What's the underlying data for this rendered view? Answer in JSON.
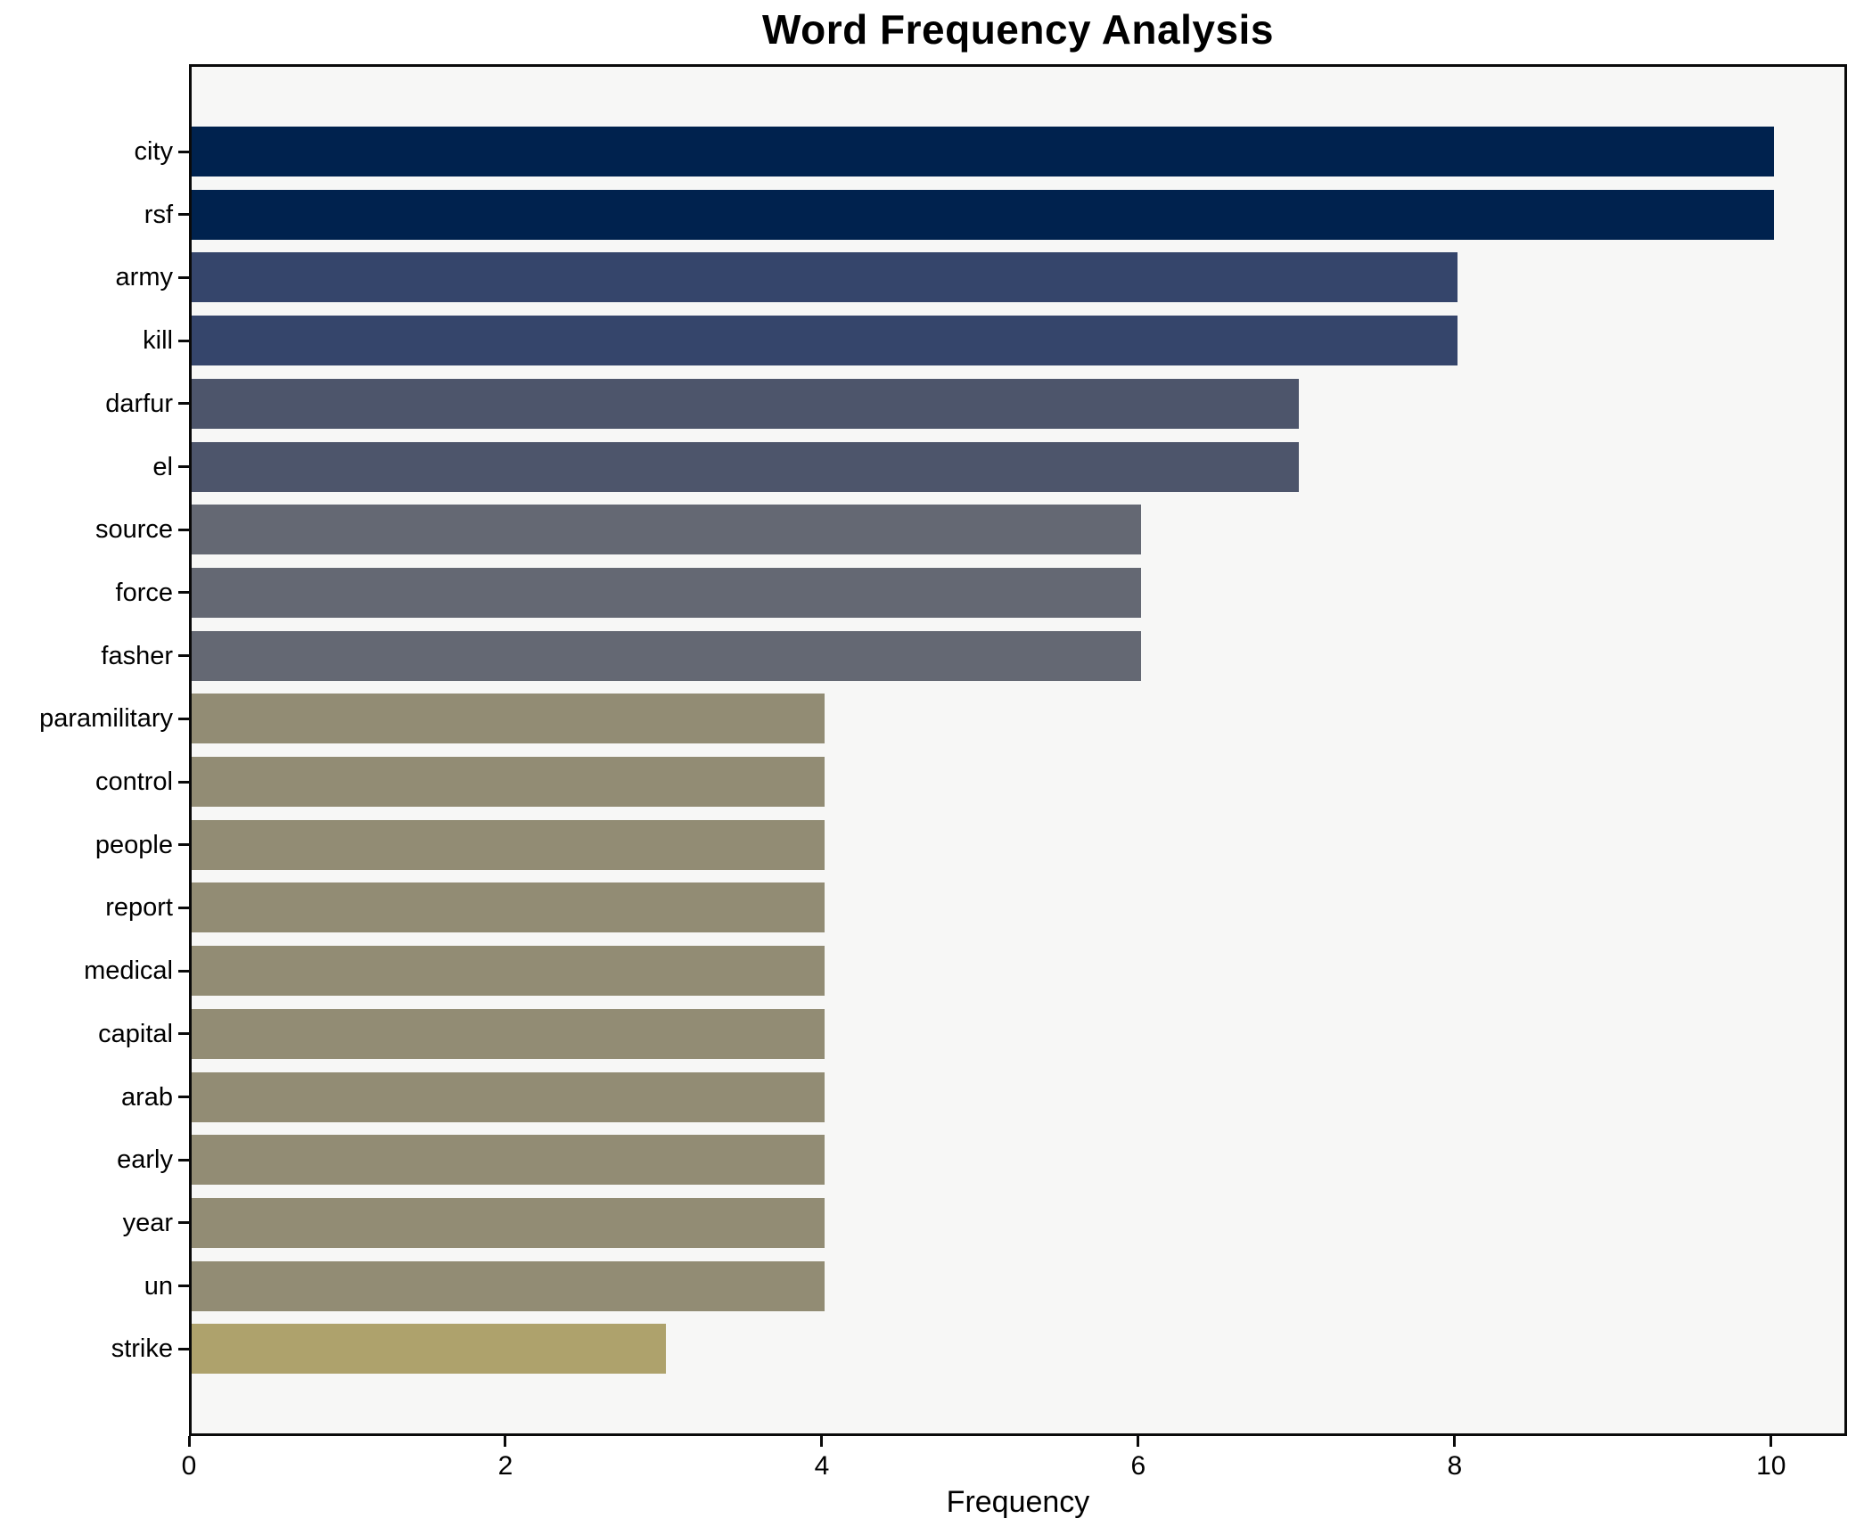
{
  "chart_data": {
    "type": "bar",
    "orientation": "horizontal",
    "title": "Word Frequency Analysis",
    "xlabel": "Frequency",
    "ylabel": "",
    "categories": [
      "city",
      "rsf",
      "army",
      "kill",
      "darfur",
      "el",
      "source",
      "force",
      "fasher",
      "paramilitary",
      "control",
      "people",
      "report",
      "medical",
      "capital",
      "arab",
      "early",
      "year",
      "un",
      "strike"
    ],
    "values": [
      10,
      10,
      8,
      8,
      7,
      7,
      6,
      6,
      6,
      4,
      4,
      4,
      4,
      4,
      4,
      4,
      4,
      4,
      4,
      3
    ],
    "bar_colors": [
      "#00224e",
      "#00224e",
      "#35456b",
      "#35456b",
      "#4d556b",
      "#4d556b",
      "#646873",
      "#646873",
      "#646873",
      "#928c74",
      "#928c74",
      "#928c74",
      "#928c74",
      "#928c74",
      "#928c74",
      "#928c74",
      "#928c74",
      "#928c74",
      "#928c74",
      "#aea26c"
    ],
    "xticks": [
      0,
      2,
      4,
      6,
      8,
      10
    ],
    "xlim": [
      0,
      10.48
    ],
    "grid": false,
    "legend": "none",
    "plot_background": "#f7f7f6",
    "figure_background": "#ffffff",
    "axis_color": "#0a0a0a"
  }
}
